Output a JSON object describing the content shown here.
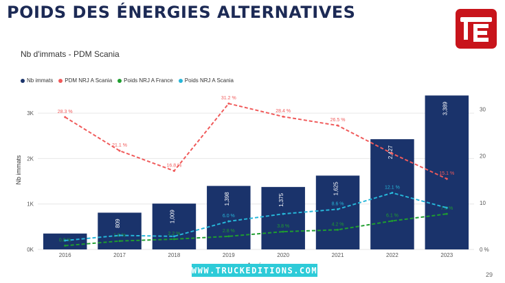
{
  "page": {
    "title": "POIDS DES ÉNERGIES ALTERNATIVES",
    "page_number": "29",
    "watermark": "WWW.TRUCKEDITIONS.COM",
    "logo_icon": "truckeditions-logo-icon"
  },
  "colors": {
    "title": "#1c2a55",
    "bars": "#1a336b",
    "pdm_scania": "#f05a5a",
    "poids_france": "#1f9e2f",
    "poids_scania": "#27b6d9",
    "logo": "#c8141b",
    "watermark": "#2ecbd8"
  },
  "chart_data": {
    "type": "bar",
    "title": "Nb d'immats - PDM Scania",
    "xlabel": "Année",
    "ylabel": "Nb immats",
    "categories": [
      "2016",
      "2017",
      "2018",
      "2019",
      "2020",
      "2021",
      "2022",
      "2023"
    ],
    "ylim": [
      0,
      3500
    ],
    "y2lim": [
      0,
      34
    ],
    "y_ticks": [
      {
        "value": 0,
        "label": "0K"
      },
      {
        "value": 1000,
        "label": "1K"
      },
      {
        "value": 2000,
        "label": "2K"
      },
      {
        "value": 3000,
        "label": "3K"
      }
    ],
    "y2_ticks": [
      {
        "value": 0,
        "label": "0 %"
      },
      {
        "value": 10,
        "label": "10"
      },
      {
        "value": 20,
        "label": "20"
      },
      {
        "value": 30,
        "label": "30"
      }
    ],
    "grid": true,
    "legend_position": "top-left",
    "series": [
      {
        "name": "Nb immats",
        "kind": "bar",
        "axis": "left",
        "values": [
          350,
          809,
          1009,
          1398,
          1375,
          1625,
          2427,
          3389
        ],
        "labels": [
          "",
          "809",
          "1,009",
          "1,398",
          "1,375",
          "1,625",
          "2,427",
          "3,389"
        ]
      },
      {
        "name": "PDM NRJ A Scania",
        "kind": "line",
        "axis": "right",
        "values": [
          28.3,
          21.1,
          16.8,
          31.2,
          28.4,
          26.5,
          20.5,
          15.1
        ],
        "labels": [
          "28.3 %",
          "21.1 %",
          "16.8 %",
          "31.2 %",
          "28.4 %",
          "26.5 %",
          "",
          "15.1 %"
        ]
      },
      {
        "name": "Poids NRJ A France",
        "kind": "line",
        "axis": "right",
        "values": [
          0.8,
          1.8,
          2.2,
          2.8,
          3.8,
          4.2,
          6.1,
          7.6
        ],
        "labels": [
          "0.8 %",
          "1.8 %",
          "2.2 %",
          "2.8 %",
          "3.8 %",
          "4.2 %",
          "6.1 %",
          "7.6 %"
        ]
      },
      {
        "name": "Poids NRJ A Scania",
        "kind": "line",
        "axis": "right",
        "values": [
          1.9,
          3.0,
          2.8,
          6.0,
          7.6,
          8.6,
          12.1,
          8.9
        ],
        "labels": [
          "",
          "",
          "",
          "6.0 %",
          "",
          "8.6 %",
          "12.1 %",
          ""
        ]
      }
    ]
  }
}
